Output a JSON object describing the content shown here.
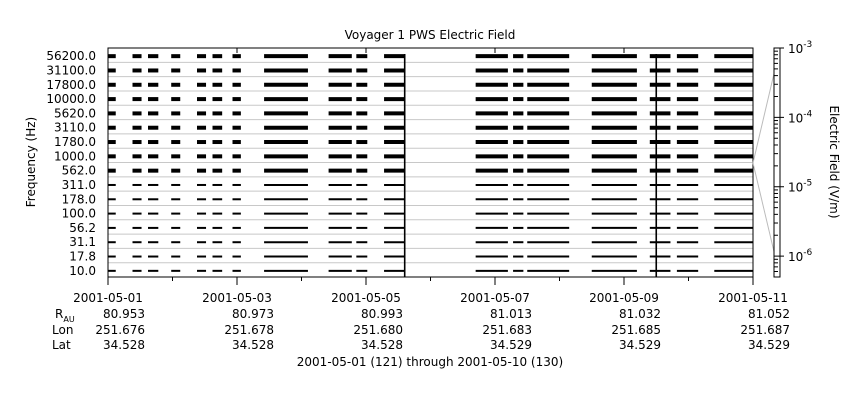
{
  "chart_data": {
    "type": "heatmap",
    "title": "Voyager 1 PWS Electric Field",
    "ylabel": "Frequency (Hz)",
    "colorbar_label": "Electric Field (V/m)",
    "colorbar_range": [
      5e-07,
      0.001
    ],
    "colorbar_ticks": [
      {
        "value": 0.001,
        "base": "10",
        "exp": "-3"
      },
      {
        "value": 0.0001,
        "base": "10",
        "exp": "-4"
      },
      {
        "value": 1e-05,
        "base": "10",
        "exp": "-5"
      },
      {
        "value": 1e-06,
        "base": "10",
        "exp": "-6"
      }
    ],
    "channels": [
      "56200.0",
      "31100.0",
      "17800.0",
      "10000.0",
      "5620.0",
      "3110.0",
      "1780.0",
      "1000.0",
      "562.0",
      "311.0",
      "178.0",
      "100.0",
      "56.2",
      "31.1",
      "17.8",
      "10.0"
    ],
    "x_range_days": [
      0,
      10
    ],
    "x_ticks": [
      {
        "day": 0,
        "date": "2001-05-01",
        "rau": "80.953",
        "lon": "251.676",
        "lat": "34.528"
      },
      {
        "day": 2,
        "date": "2001-05-03",
        "rau": "80.973",
        "lon": "251.678",
        "lat": "34.528"
      },
      {
        "day": 4,
        "date": "2001-05-05",
        "rau": "80.993",
        "lon": "251.680",
        "lat": "34.528"
      },
      {
        "day": 6,
        "date": "2001-05-07",
        "rau": "81.013",
        "lon": "251.683",
        "lat": "34.529"
      },
      {
        "day": 8,
        "date": "2001-05-09",
        "rau": "81.032",
        "lon": "251.685",
        "lat": "34.529"
      },
      {
        "day": 10,
        "date": "2001-05-11",
        "rau": "81.052",
        "lon": "251.687",
        "lat": "34.529"
      }
    ],
    "data_segments_days": [
      [
        0.0,
        0.12
      ],
      [
        0.38,
        0.52
      ],
      [
        0.62,
        0.78
      ],
      [
        0.98,
        1.12
      ],
      [
        1.38,
        1.52
      ],
      [
        1.62,
        1.77
      ],
      [
        1.93,
        2.06
      ],
      [
        2.42,
        3.1
      ],
      [
        3.42,
        3.78
      ],
      [
        3.85,
        4.02
      ],
      [
        4.28,
        4.6
      ],
      [
        5.7,
        6.2
      ],
      [
        6.28,
        6.44
      ],
      [
        6.5,
        7.15
      ],
      [
        7.5,
        8.2
      ],
      [
        8.4,
        8.72
      ],
      [
        8.82,
        9.15
      ],
      [
        9.4,
        10.0
      ]
    ],
    "bursts_days": [
      4.6,
      8.5
    ]
  },
  "labels": {
    "rau_base": "R",
    "rau_sub": "AU",
    "lon": "Lon",
    "lat": "Lat",
    "footer": "2001-05-01 (121) through 2001-05-10 (130)"
  }
}
